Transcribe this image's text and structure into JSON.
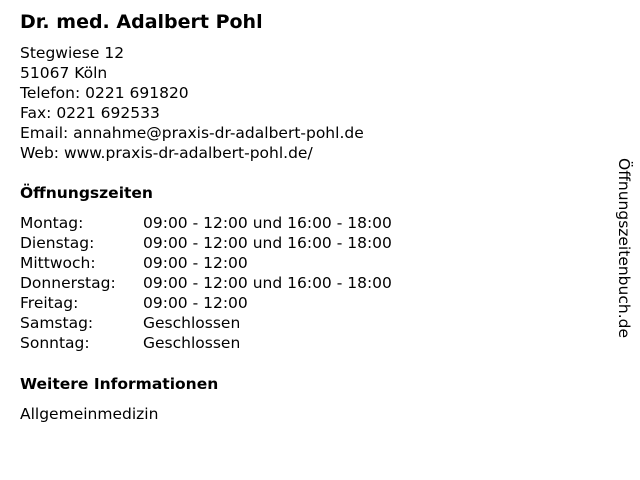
{
  "title": "Dr. med. Adalbert Pohl",
  "contact": {
    "street": "Stegwiese 12",
    "city": "51067 Köln",
    "phone": "Telefon: 0221 691820",
    "fax": "Fax: 0221 692533",
    "email": "Email: annahme@praxis-dr-adalbert-pohl.de",
    "web": "Web: www.praxis-dr-adalbert-pohl.de/"
  },
  "hours": {
    "heading": "Öffnungszeiten",
    "rows": [
      {
        "day": "Montag:",
        "time": "09:00 - 12:00 und 16:00 - 18:00"
      },
      {
        "day": "Dienstag:",
        "time": "09:00 - 12:00 und 16:00 - 18:00"
      },
      {
        "day": "Mittwoch:",
        "time": "09:00 - 12:00"
      },
      {
        "day": "Donnerstag:",
        "time": "09:00 - 12:00 und 16:00 - 18:00"
      },
      {
        "day": "Freitag:",
        "time": "09:00 - 12:00"
      },
      {
        "day": "Samstag:",
        "time": "Geschlossen"
      },
      {
        "day": "Sonntag:",
        "time": "Geschlossen"
      }
    ]
  },
  "info": {
    "heading": "Weitere Informationen",
    "text": "Allgemeinmedizin"
  },
  "watermark": "Öffnungszeitenbuch.de"
}
